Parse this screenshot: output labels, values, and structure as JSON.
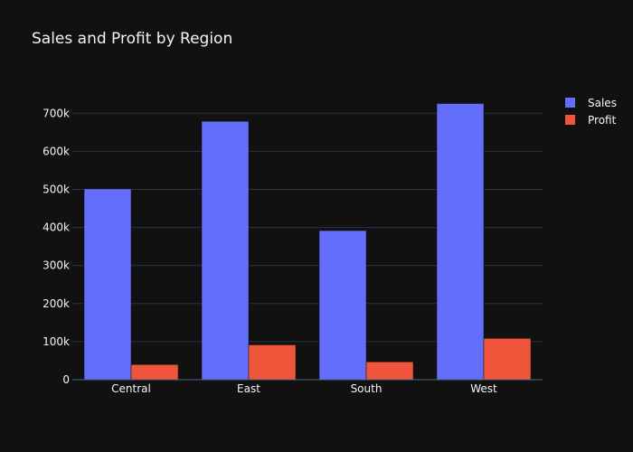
{
  "chart_data": {
    "type": "bar",
    "title": "Sales and Profit by Region",
    "xlabel": "",
    "ylabel": "",
    "categories": [
      "Central",
      "East",
      "South",
      "West"
    ],
    "series": [
      {
        "name": "Sales",
        "color": "#636efa",
        "values": [
          501240,
          678781,
          391722,
          725458
        ]
      },
      {
        "name": "Profit",
        "color": "#ef553b",
        "values": [
          39706,
          91523,
          46749,
          108418
        ]
      }
    ],
    "ylim": [
      0,
      760000
    ],
    "yticks": [
      0,
      100000,
      200000,
      300000,
      400000,
      500000,
      600000,
      700000
    ],
    "ytick_labels": [
      "0",
      "100k",
      "200k",
      "300k",
      "400k",
      "500k",
      "600k",
      "700k"
    ],
    "grid": true,
    "legend_position": "top-right",
    "background": "#111111",
    "grid_color": "#283442",
    "text_color": "#f2f5fa"
  }
}
